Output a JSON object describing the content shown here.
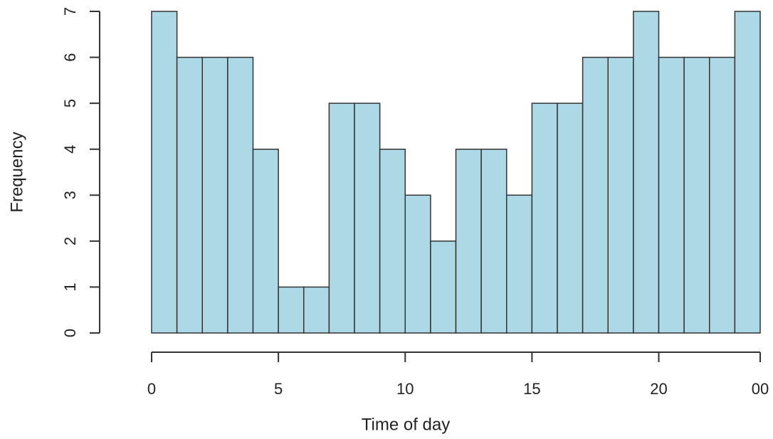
{
  "chart_data": {
    "type": "histogram",
    "xlabel": "Time of day",
    "ylabel": "Frequency",
    "bins": [
      0,
      1,
      2,
      3,
      4,
      5,
      6,
      7,
      8,
      9,
      10,
      11,
      12,
      13,
      14,
      15,
      16,
      17,
      18,
      19,
      20,
      21,
      22,
      23,
      24
    ],
    "counts": [
      7,
      6,
      6,
      6,
      4,
      1,
      1,
      5,
      5,
      4,
      3,
      2,
      4,
      4,
      3,
      5,
      5,
      6,
      6,
      7,
      6,
      6,
      6,
      7
    ],
    "color": "#add8e6",
    "xlim": [
      0,
      24
    ],
    "xticks": [
      0,
      5,
      10,
      15,
      20,
      {
        "value": 24,
        "label": "00"
      }
    ],
    "ylim": [
      0,
      7
    ],
    "yticks": [
      0,
      1,
      2,
      3,
      4,
      5,
      6,
      7
    ]
  }
}
